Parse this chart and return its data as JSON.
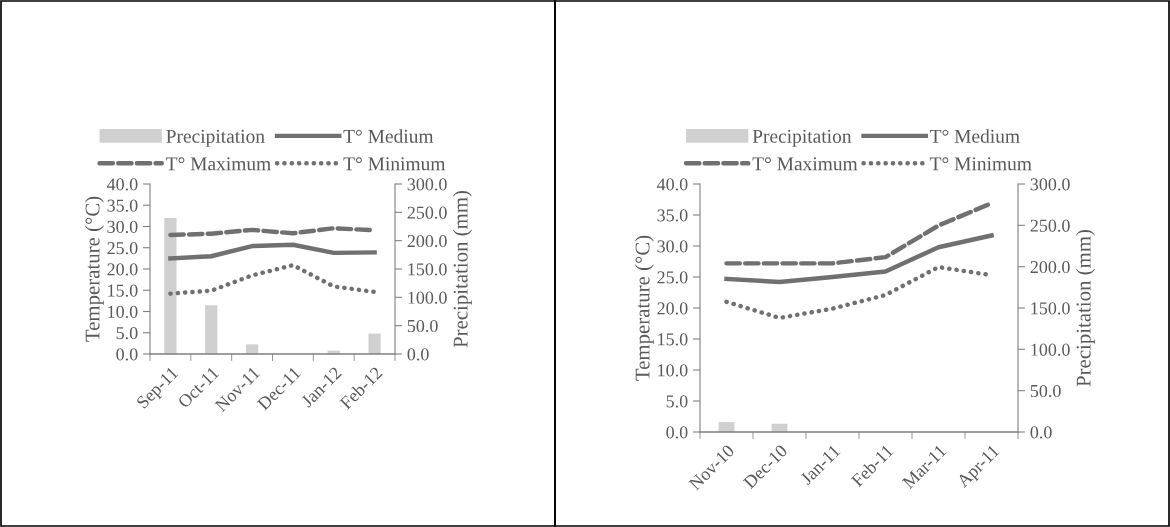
{
  "chart_data": [
    {
      "type": "bar",
      "categories": [
        "Sep-11",
        "Oct-11",
        "Nov-11",
        "Dec-11",
        "Jan-12",
        "Feb-12"
      ],
      "ylabel": "Temperature (°C)",
      "y2label": "Precipitation (mm)",
      "ylim": [
        0,
        40
      ],
      "yticks": [
        {
          "value": 0,
          "label": "0.0"
        },
        {
          "value": 5,
          "label": "5.0"
        },
        {
          "value": 10,
          "label": "10.0"
        },
        {
          "value": 15,
          "label": "15.0"
        },
        {
          "value": 20,
          "label": "20.0"
        },
        {
          "value": 25,
          "label": "25.0"
        },
        {
          "value": 30,
          "label": "30.0"
        },
        {
          "value": 35,
          "label": "35.0"
        },
        {
          "value": 40,
          "label": "40.0"
        }
      ],
      "y2lim": [
        0,
        300
      ],
      "y2ticks": [
        {
          "value": 0,
          "label": "0.0"
        },
        {
          "value": 50,
          "label": "50.0"
        },
        {
          "value": 100,
          "label": "100.0"
        },
        {
          "value": 150,
          "label": "150.0"
        },
        {
          "value": 200,
          "label": "200.0"
        },
        {
          "value": 250,
          "label": "250.0"
        },
        {
          "value": 300,
          "label": "300.0"
        }
      ],
      "grid": false,
      "legend": "top",
      "series": [
        {
          "name": "Precipitation",
          "axis": "y2",
          "color": "#d0d0d0",
          "values": [
            240,
            86,
            17,
            0,
            6,
            36
          ]
        },
        {
          "name": "T° Medium",
          "type": "line",
          "line_style": "solid",
          "color": "#707070",
          "values": [
            22.5,
            23.0,
            25.4,
            25.7,
            23.8,
            23.9
          ]
        },
        {
          "name": "T° Maximum",
          "type": "line",
          "line_style": "dashed",
          "color": "#707070",
          "values": [
            28.0,
            28.3,
            29.2,
            28.4,
            29.6,
            29.1
          ]
        },
        {
          "name": "T° Minimum",
          "type": "line",
          "line_style": "dotted",
          "color": "#707070",
          "values": [
            14.2,
            14.9,
            18.5,
            20.9,
            15.9,
            14.6
          ]
        }
      ]
    },
    {
      "type": "bar",
      "categories": [
        "Nov-10",
        "Dec-10",
        "Jan-11",
        "Feb-11",
        "Mar-11",
        "Apr-11"
      ],
      "ylabel": "Temperature (°C)",
      "y2label": "Precipitation (mm)",
      "ylim": [
        0,
        40
      ],
      "yticks": [
        {
          "value": 0,
          "label": "0.0"
        },
        {
          "value": 5,
          "label": "5.0"
        },
        {
          "value": 10,
          "label": "10.0"
        },
        {
          "value": 15,
          "label": "15.0"
        },
        {
          "value": 20,
          "label": "20.0"
        },
        {
          "value": 25,
          "label": "25.0"
        },
        {
          "value": 30,
          "label": "30.0"
        },
        {
          "value": 35,
          "label": "35.0"
        },
        {
          "value": 40,
          "label": "40.0"
        }
      ],
      "y2lim": [
        0,
        300
      ],
      "y2ticks": [
        {
          "value": 0,
          "label": "0.0"
        },
        {
          "value": 50,
          "label": "50.0"
        },
        {
          "value": 100,
          "label": "100.0"
        },
        {
          "value": 150,
          "label": "150.0"
        },
        {
          "value": 200,
          "label": "200.0"
        },
        {
          "value": 250,
          "label": "250.0"
        },
        {
          "value": 300,
          "label": "300.0"
        }
      ],
      "grid": false,
      "legend": "top",
      "series": [
        {
          "name": "Precipitation",
          "axis": "y2",
          "color": "#d0d0d0",
          "values": [
            12,
            10,
            0,
            0,
            0,
            0
          ]
        },
        {
          "name": "T° Medium",
          "type": "line",
          "line_style": "solid",
          "color": "#707070",
          "values": [
            24.7,
            24.2,
            25.0,
            25.9,
            29.8,
            31.7
          ]
        },
        {
          "name": "T° Maximum",
          "type": "line",
          "line_style": "dashed",
          "color": "#707070",
          "values": [
            27.2,
            27.2,
            27.2,
            28.2,
            33.3,
            36.9
          ]
        },
        {
          "name": "T° Minimum",
          "type": "line",
          "line_style": "dotted",
          "color": "#707070",
          "values": [
            21.0,
            18.4,
            19.9,
            22.1,
            26.6,
            25.3
          ]
        }
      ]
    }
  ]
}
